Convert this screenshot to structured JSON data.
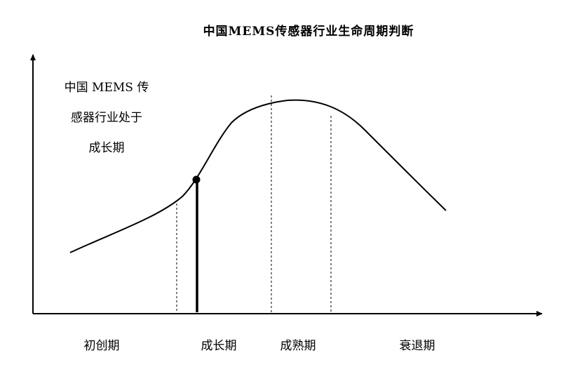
{
  "chart_data": {
    "type": "line",
    "title": "中国MEMS传感器行业生命周期判断",
    "annotation": [
      "中国 MEMS 传",
      "感器行业处于",
      "成长期"
    ],
    "stages": [
      "初创期",
      "成长期",
      "成熟期",
      "衰退期"
    ],
    "current_stage": "成长期",
    "xlabel": "",
    "ylabel": "",
    "grid": false,
    "colors": {
      "curve": "#000000",
      "axes": "#000000"
    }
  }
}
